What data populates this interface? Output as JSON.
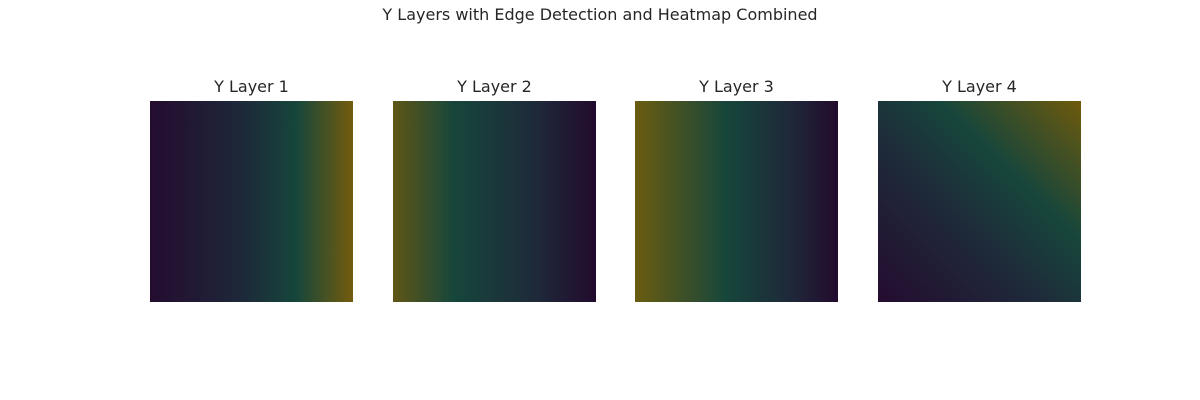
{
  "figure": {
    "title": "Y Layers with Edge Detection and Heatmap Combined"
  },
  "chart_data": [
    {
      "type": "heatmap",
      "title": "Y Layer 1",
      "axes_visible": false,
      "gradient": "left-to-right",
      "colors": [
        "#240c2f",
        "#1d2839",
        "#16463b",
        "#735c0d"
      ]
    },
    {
      "type": "heatmap",
      "title": "Y Layer 2",
      "axes_visible": false,
      "gradient": "left-to-right",
      "colors": [
        "#5f5616",
        "#16463b",
        "#1e2a3a",
        "#220b2d"
      ]
    },
    {
      "type": "heatmap",
      "title": "Y Layer 3",
      "axes_visible": false,
      "gradient": "left-to-right",
      "colors": [
        "#6a5c10",
        "#16463b",
        "#1e2a3a",
        "#220b2d"
      ]
    },
    {
      "type": "heatmap",
      "title": "Y Layer 4",
      "axes_visible": false,
      "gradient": "diagonal bottom-left to top-right",
      "colors": [
        "#240c2f",
        "#1e2a3a",
        "#16463b",
        "#6e5a0c"
      ]
    }
  ]
}
